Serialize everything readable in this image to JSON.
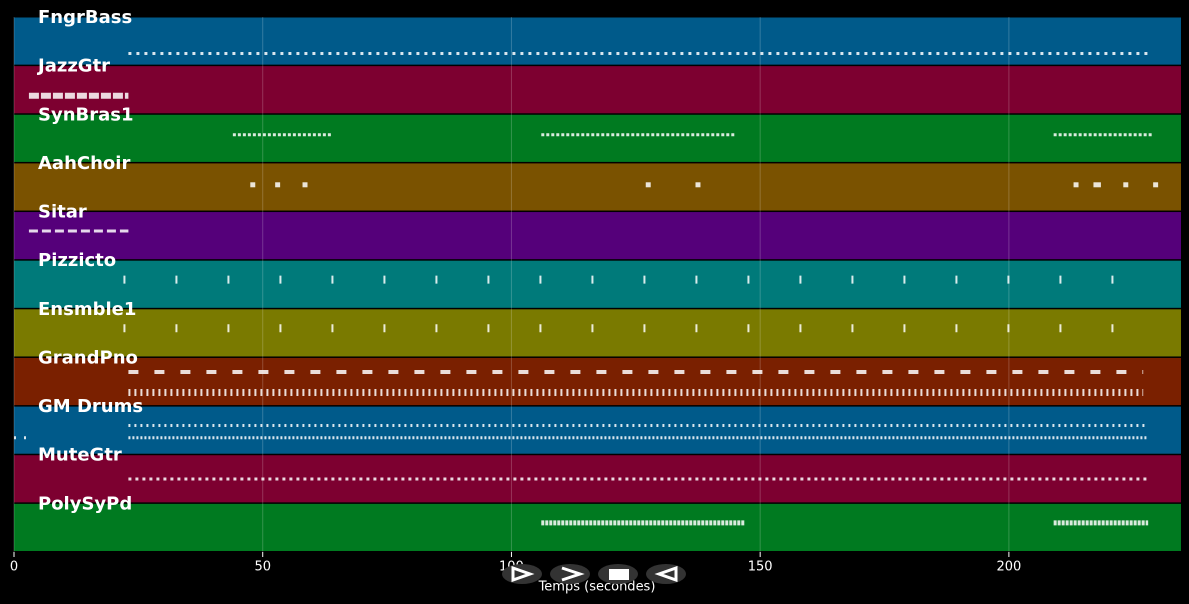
{
  "chart_data": {
    "type": "pianoroll",
    "xlabel": "Temps (secondes)",
    "xlim": [
      0,
      234.6
    ],
    "xticks": [
      0,
      50,
      100,
      150,
      200
    ],
    "grid": true,
    "series": [
      {
        "name": "FngrBass",
        "color": "#005a8a",
        "notes": [
          [
            23,
            228
          ]
        ]
      },
      {
        "name": "JazzGtr",
        "color": "#7d0030",
        "notes": [
          [
            3,
            23
          ]
        ]
      },
      {
        "name": "SynBras1",
        "color": "#007a20",
        "notes": [
          [
            44,
            64
          ],
          [
            106,
            145
          ],
          [
            209,
            229
          ]
        ]
      },
      {
        "name": "AahChoir",
        "color": "#7a5200",
        "notes": [
          [
            47.5,
            48.5
          ],
          [
            52.5,
            53.5
          ],
          [
            58,
            59
          ],
          [
            127,
            128
          ],
          [
            137,
            138
          ],
          [
            213,
            214
          ],
          [
            217,
            218.5
          ],
          [
            223,
            224
          ],
          [
            229,
            230
          ]
        ]
      },
      {
        "name": "Sitar",
        "color": "#55007a",
        "notes": [
          [
            3,
            23
          ]
        ]
      },
      {
        "name": "Pizzicto",
        "color": "#007a7a",
        "notes": [
          [
            22,
            222
          ]
        ]
      },
      {
        "name": "Ensmble1",
        "color": "#7a7a00",
        "notes": [
          [
            22,
            222
          ]
        ]
      },
      {
        "name": "GrandPno",
        "color": "#7a2000",
        "notes": [
          [
            23,
            227
          ],
          [
            23,
            227
          ]
        ]
      },
      {
        "name": "GM Drums",
        "color": "#005a8a",
        "notes": [
          [
            0,
            3
          ],
          [
            23,
            228
          ],
          [
            23,
            228
          ]
        ]
      },
      {
        "name": "MuteGtr",
        "color": "#7d0030",
        "notes": [
          [
            23,
            228
          ]
        ]
      },
      {
        "name": "PolySyPd",
        "color": "#007a20",
        "notes": [
          [
            106,
            147
          ],
          [
            209,
            228
          ]
        ]
      }
    ]
  }
}
